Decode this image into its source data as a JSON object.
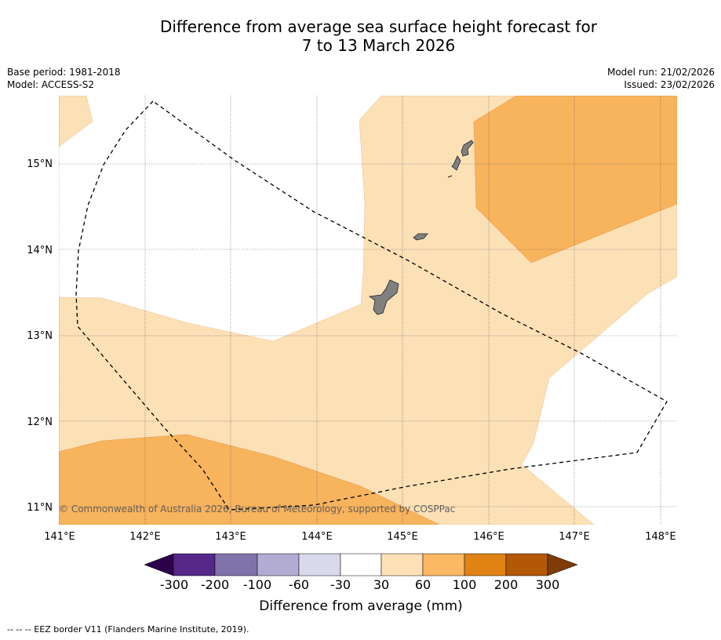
{
  "title": {
    "line1": "Difference from average sea surface height forecast for",
    "line2": "7 to 13 March 2026"
  },
  "info_left": {
    "base_period": "Base period: 1981-2018",
    "model": "Model: ACCESS-S2"
  },
  "info_right": {
    "model_run": "Model run: 21/02/2026",
    "issued": "Issued: 23/02/2026"
  },
  "map": {
    "lon_labels": [
      "141°E",
      "142°E",
      "143°E",
      "144°E",
      "145°E",
      "146°E",
      "147°E",
      "148°E"
    ],
    "lat_labels": [
      "15°N",
      "14°N",
      "13°N",
      "12°N",
      "11°N"
    ],
    "copyright": "© Commonwealth of Australia 2026, Bureau of Meteorology, supported by COSPPac",
    "region_colors": {
      "light_orange": "#fce0b6",
      "medium_orange": "#f8b35d",
      "land": "#808080"
    }
  },
  "colorbar": {
    "label": "Difference from average (mm)",
    "ticks": [
      "-300",
      "-200",
      "-100",
      "-60",
      "-30",
      "30",
      "60",
      "100",
      "200",
      "300"
    ],
    "colors": [
      "#2d004b",
      "#542788",
      "#8073ac",
      "#b2abd2",
      "#d8daeb",
      "#ffffff",
      "#fee0b6",
      "#fdb863",
      "#e08214",
      "#b35806",
      "#7f3b08"
    ]
  },
  "footnote": "--  --  -- EEZ border V11 (Flanders Marine Institute, 2019)."
}
